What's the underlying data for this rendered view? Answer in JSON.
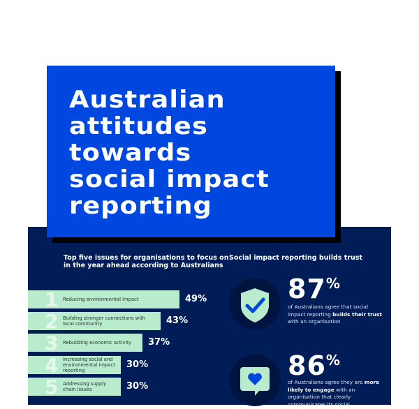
{
  "title": "Australian\nattitudes\ntowards\nsocial impact\nreporting",
  "chart_data": {
    "type": "bar",
    "title": "Top five issues for organisations to focus on in the year ahead according to Australians",
    "ranks": [
      "1",
      "2",
      "3",
      "4",
      "5"
    ],
    "categories": [
      "Reducing environmental impact",
      "Building stronger connections with local community",
      "Rebuilding economic activity",
      "Increasing social and environmental impact reporting",
      "Addressing supply chain issues"
    ],
    "values": [
      49,
      43,
      37,
      30,
      30
    ],
    "value_labels": [
      "49%",
      "43%",
      "37%",
      "30%",
      "30%"
    ],
    "orientation": "horizontal",
    "bar_color": "#b8eccc"
  },
  "trust": {
    "heading": "Social impact reporting builds trust",
    "stats": [
      {
        "icon": "shield-check-icon",
        "value": "87",
        "unit": "%",
        "pre": "of Australians agree that social impact reporting ",
        "bold": "builds their trust",
        "post": " with an organisation"
      },
      {
        "icon": "heart-speech-bubble-icon",
        "value": "86",
        "unit": "%",
        "pre": "of Australians agree they are ",
        "bold": "more likely to engage",
        "post": " with an organisation that clearly communicates its social"
      }
    ]
  },
  "colors": {
    "blue": "#0047e0",
    "navy": "#001d57",
    "mint": "#b8eccc"
  }
}
